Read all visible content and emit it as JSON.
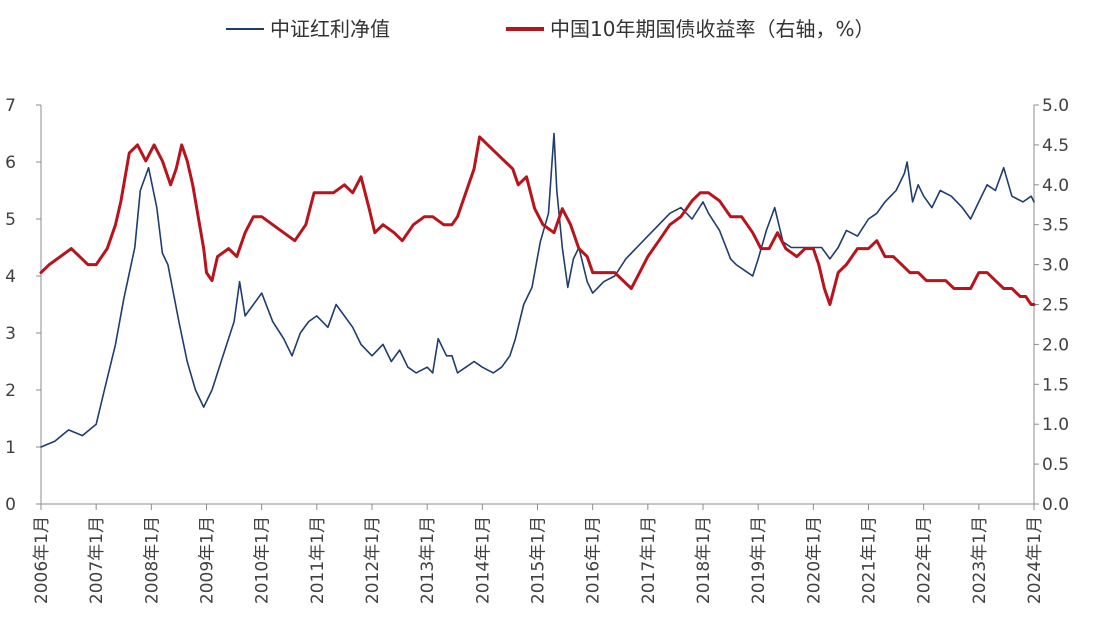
{
  "chart_data": {
    "type": "line",
    "title": "",
    "legend_position": "top-center",
    "left_axis": {
      "ylim": [
        0,
        7
      ],
      "ticks": [
        "0",
        "1",
        "2",
        "3",
        "4",
        "5",
        "6",
        "7"
      ]
    },
    "right_axis": {
      "ylim": [
        0,
        5
      ],
      "ticks": [
        "0.0",
        "0.5",
        "1.0",
        "1.5",
        "2.0",
        "2.5",
        "3.0",
        "3.5",
        "4.0",
        "4.5",
        "5.0"
      ]
    },
    "x_range": [
      2006.0,
      2024.0
    ],
    "x_tick_labels": [
      "2006年1月",
      "2007年1月",
      "2008年1月",
      "2009年1月",
      "2010年1月",
      "2011年1月",
      "2012年1月",
      "2013年1月",
      "2014年1月",
      "2015年1月",
      "2016年1月",
      "2017年1月",
      "2018年1月",
      "2019年1月",
      "2020年1月",
      "2021年1月",
      "2022年1月",
      "2023年1月",
      "2024年1月"
    ],
    "series": [
      {
        "name": "中证红利净值",
        "axis": "left",
        "color": "#1f3d6e",
        "x": [
          2006.0,
          2006.25,
          2006.5,
          2006.75,
          2007.0,
          2007.15,
          2007.35,
          2007.5,
          2007.7,
          2007.8,
          2007.95,
          2008.1,
          2008.2,
          2008.3,
          2008.5,
          2008.65,
          2008.8,
          2008.95,
          2009.1,
          2009.3,
          2009.5,
          2009.6,
          2009.7,
          2009.85,
          2010.0,
          2010.2,
          2010.4,
          2010.55,
          2010.7,
          2010.85,
          2011.0,
          2011.2,
          2011.35,
          2011.5,
          2011.65,
          2011.8,
          2012.0,
          2012.2,
          2012.35,
          2012.5,
          2012.65,
          2012.8,
          2013.0,
          2013.1,
          2013.2,
          2013.35,
          2013.45,
          2013.55,
          2013.7,
          2013.85,
          2014.0,
          2014.2,
          2014.35,
          2014.5,
          2014.6,
          2014.75,
          2014.9,
          2015.05,
          2015.2,
          2015.3,
          2015.35,
          2015.45,
          2015.55,
          2015.65,
          2015.75,
          2015.9,
          2016.0,
          2016.1,
          2016.2,
          2016.4,
          2016.6,
          2016.8,
          2017.0,
          2017.2,
          2017.4,
          2017.6,
          2017.8,
          2018.0,
          2018.1,
          2018.3,
          2018.5,
          2018.6,
          2018.75,
          2018.9,
          2019.0,
          2019.15,
          2019.3,
          2019.45,
          2019.6,
          2019.8,
          2020.0,
          2020.15,
          2020.3,
          2020.45,
          2020.6,
          2020.8,
          2021.0,
          2021.15,
          2021.3,
          2021.5,
          2021.65,
          2021.7,
          2021.8,
          2021.9,
          2022.0,
          2022.15,
          2022.3,
          2022.5,
          2022.7,
          2022.85,
          2023.0,
          2023.15,
          2023.3,
          2023.45,
          2023.6,
          2023.8,
          2023.95,
          2024.0
        ],
        "values": [
          1.0,
          1.1,
          1.3,
          1.2,
          1.4,
          2.0,
          2.8,
          3.6,
          4.5,
          5.5,
          5.9,
          5.2,
          4.4,
          4.2,
          3.2,
          2.5,
          2.0,
          1.7,
          2.0,
          2.6,
          3.2,
          3.9,
          3.3,
          3.5,
          3.7,
          3.2,
          2.9,
          2.6,
          3.0,
          3.2,
          3.3,
          3.1,
          3.5,
          3.3,
          3.1,
          2.8,
          2.6,
          2.8,
          2.5,
          2.7,
          2.4,
          2.3,
          2.4,
          2.3,
          2.9,
          2.6,
          2.6,
          2.3,
          2.4,
          2.5,
          2.4,
          2.3,
          2.4,
          2.6,
          2.9,
          3.5,
          3.8,
          4.6,
          5.1,
          6.5,
          5.5,
          4.5,
          3.8,
          4.3,
          4.5,
          3.9,
          3.7,
          3.8,
          3.9,
          4.0,
          4.3,
          4.5,
          4.7,
          4.9,
          5.1,
          5.2,
          5.0,
          5.3,
          5.1,
          4.8,
          4.3,
          4.2,
          4.1,
          4.0,
          4.3,
          4.8,
          5.2,
          4.6,
          4.5,
          4.5,
          4.5,
          4.5,
          4.3,
          4.5,
          4.8,
          4.7,
          5.0,
          5.1,
          5.3,
          5.5,
          5.8,
          6.0,
          5.3,
          5.6,
          5.4,
          5.2,
          5.5,
          5.4,
          5.2,
          5.0,
          5.3,
          5.6,
          5.5,
          5.9,
          5.4,
          5.3,
          5.4,
          5.3
        ]
      },
      {
        "name": "中国10年期国债收益率（右轴，%）",
        "axis": "right",
        "color": "#b7141b",
        "x": [
          2006.0,
          2006.15,
          2006.35,
          2006.55,
          2006.7,
          2006.85,
          2007.0,
          2007.2,
          2007.35,
          2007.45,
          2007.6,
          2007.75,
          2007.9,
          2008.05,
          2008.2,
          2008.35,
          2008.45,
          2008.55,
          2008.65,
          2008.75,
          2008.85,
          2008.95,
          2009.0,
          2009.1,
          2009.2,
          2009.4,
          2009.55,
          2009.7,
          2009.85,
          2010.0,
          2010.2,
          2010.4,
          2010.6,
          2010.8,
          2010.95,
          2011.1,
          2011.3,
          2011.5,
          2011.65,
          2011.8,
          2011.95,
          2012.05,
          2012.2,
          2012.4,
          2012.55,
          2012.75,
          2012.95,
          2013.1,
          2013.3,
          2013.45,
          2013.55,
          2013.7,
          2013.85,
          2013.95,
          2014.1,
          2014.25,
          2014.4,
          2014.55,
          2014.65,
          2014.8,
          2014.95,
          2015.1,
          2015.3,
          2015.45,
          2015.6,
          2015.75,
          2015.9,
          2016.0,
          2016.2,
          2016.4,
          2016.55,
          2016.7,
          2016.85,
          2017.0,
          2017.2,
          2017.4,
          2017.6,
          2017.8,
          2017.95,
          2018.1,
          2018.3,
          2018.5,
          2018.7,
          2018.9,
          2019.05,
          2019.2,
          2019.35,
          2019.5,
          2019.7,
          2019.85,
          2020.0,
          2020.1,
          2020.2,
          2020.3,
          2020.45,
          2020.6,
          2020.8,
          2021.0,
          2021.15,
          2021.3,
          2021.45,
          2021.6,
          2021.75,
          2021.9,
          2022.05,
          2022.2,
          2022.4,
          2022.55,
          2022.7,
          2022.85,
          2023.0,
          2023.15,
          2023.3,
          2023.45,
          2023.6,
          2023.75,
          2023.85,
          2023.95,
          2024.0
        ],
        "values": [
          2.9,
          3.0,
          3.1,
          3.2,
          3.1,
          3.0,
          3.0,
          3.2,
          3.5,
          3.8,
          4.4,
          4.5,
          4.3,
          4.5,
          4.3,
          4.0,
          4.2,
          4.5,
          4.3,
          4.0,
          3.6,
          3.2,
          2.9,
          2.8,
          3.1,
          3.2,
          3.1,
          3.4,
          3.6,
          3.6,
          3.5,
          3.4,
          3.3,
          3.5,
          3.9,
          3.9,
          3.9,
          4.0,
          3.9,
          4.1,
          3.7,
          3.4,
          3.5,
          3.4,
          3.3,
          3.5,
          3.6,
          3.6,
          3.5,
          3.5,
          3.6,
          3.9,
          4.2,
          4.6,
          4.5,
          4.4,
          4.3,
          4.2,
          4.0,
          4.1,
          3.7,
          3.5,
          3.4,
          3.7,
          3.5,
          3.2,
          3.1,
          2.9,
          2.9,
          2.9,
          2.8,
          2.7,
          2.9,
          3.1,
          3.3,
          3.5,
          3.6,
          3.8,
          3.9,
          3.9,
          3.8,
          3.6,
          3.6,
          3.4,
          3.2,
          3.2,
          3.4,
          3.2,
          3.1,
          3.2,
          3.2,
          3.0,
          2.7,
          2.5,
          2.9,
          3.0,
          3.2,
          3.2,
          3.3,
          3.1,
          3.1,
          3.0,
          2.9,
          2.9,
          2.8,
          2.8,
          2.8,
          2.7,
          2.7,
          2.7,
          2.9,
          2.9,
          2.8,
          2.7,
          2.7,
          2.6,
          2.6,
          2.5,
          2.5
        ]
      }
    ]
  }
}
